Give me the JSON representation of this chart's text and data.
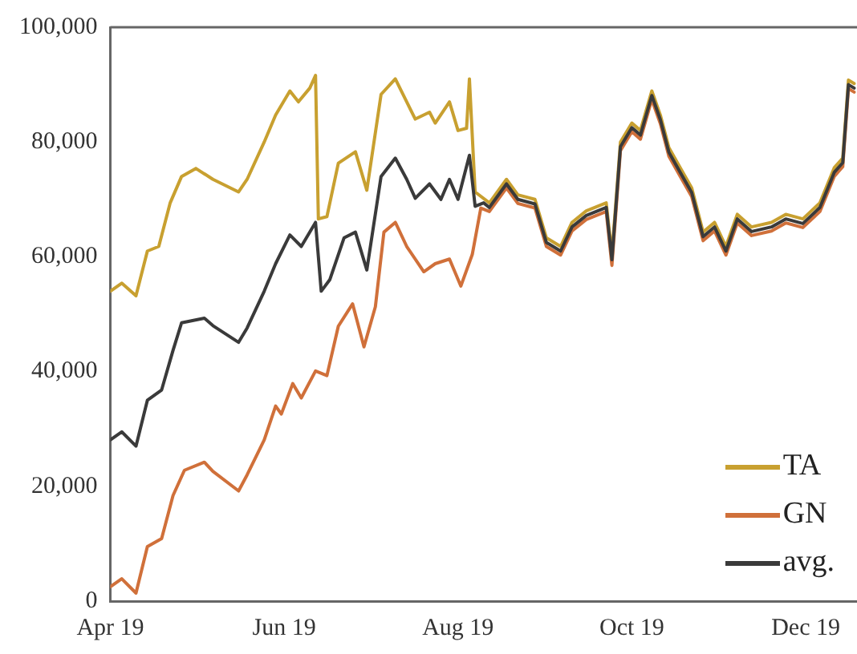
{
  "chart_data": {
    "type": "line",
    "xlim": [
      "2019-04-01",
      "2019-12-19"
    ],
    "xticks": [
      {
        "value": "2019-04-01",
        "label": "Apr 19"
      },
      {
        "value": "2019-06-01",
        "label": "Jun 19"
      },
      {
        "value": "2019-08-01",
        "label": "Aug 19"
      },
      {
        "value": "2019-10-01",
        "label": "Oct 19"
      },
      {
        "value": "2019-12-01",
        "label": "Dec 19"
      }
    ],
    "ylim": [
      0,
      100000
    ],
    "yticks": [
      0,
      {
        "value": 20000,
        "label": "20,000"
      },
      {
        "value": 40000,
        "label": "40,000"
      },
      {
        "value": 60000,
        "label": "60,000"
      },
      {
        "value": 80000,
        "label": "80,000"
      },
      {
        "value": 100000,
        "label": "100,000"
      }
    ],
    "grid": false,
    "legend": "bottom right",
    "marker": "none",
    "line_style": "solid",
    "series": [
      {
        "name": "TA",
        "color": "#c8a030",
        "x": [
          "2019-04-01",
          "2019-04-05",
          "2019-04-10",
          "2019-04-14",
          "2019-04-18",
          "2019-04-22",
          "2019-04-26",
          "2019-05-01",
          "2019-05-07",
          "2019-05-16",
          "2019-05-19",
          "2019-05-25",
          "2019-05-29",
          "2019-06-03",
          "2019-06-06",
          "2019-06-10",
          "2019-06-12",
          "2019-06-13",
          "2019-06-16",
          "2019-06-20",
          "2019-06-26",
          "2019-06-30",
          "2019-07-05",
          "2019-07-10",
          "2019-07-14",
          "2019-07-17",
          "2019-07-22",
          "2019-07-24",
          "2019-07-29",
          "2019-08-01",
          "2019-08-04",
          "2019-08-05",
          "2019-08-07",
          "2019-08-12",
          "2019-08-18",
          "2019-08-22",
          "2019-08-28",
          "2019-09-01",
          "2019-09-06",
          "2019-09-10",
          "2019-09-15",
          "2019-09-22",
          "2019-09-24",
          "2019-09-27",
          "2019-10-01",
          "2019-10-04",
          "2019-10-08",
          "2019-10-11",
          "2019-10-14",
          "2019-10-18",
          "2019-10-22",
          "2019-10-26",
          "2019-10-30",
          "2019-11-03",
          "2019-11-07",
          "2019-11-12",
          "2019-11-19",
          "2019-11-24",
          "2019-11-30",
          "2019-12-06",
          "2019-12-11",
          "2019-12-14",
          "2019-12-16",
          "2019-12-18"
        ],
        "values": [
          54000,
          55400,
          53200,
          61000,
          61800,
          69400,
          74000,
          75400,
          73500,
          71300,
          73500,
          80000,
          84700,
          88900,
          87000,
          89400,
          91600,
          66600,
          67000,
          76300,
          78300,
          71600,
          88300,
          91000,
          87000,
          84000,
          85200,
          83300,
          87000,
          82000,
          82400,
          91000,
          71300,
          69400,
          73500,
          70800,
          70000,
          63300,
          61800,
          66000,
          68000,
          69400,
          60400,
          80000,
          83300,
          82000,
          88900,
          84700,
          79000,
          75500,
          72000,
          64300,
          66000,
          61800,
          67400,
          65200,
          66000,
          67400,
          66600,
          69400,
          75500,
          77200,
          90800,
          90200
        ]
      },
      {
        "name": "GN",
        "color": "#d0703a",
        "x": [
          "2019-04-01",
          "2019-04-05",
          "2019-04-10",
          "2019-04-14",
          "2019-04-19",
          "2019-04-23",
          "2019-04-27",
          "2019-05-04",
          "2019-05-07",
          "2019-05-16",
          "2019-05-19",
          "2019-05-25",
          "2019-05-29",
          "2019-05-31",
          "2019-06-04",
          "2019-06-07",
          "2019-06-12",
          "2019-06-16",
          "2019-06-20",
          "2019-06-25",
          "2019-06-29",
          "2019-07-03",
          "2019-07-06",
          "2019-07-10",
          "2019-07-14",
          "2019-07-20",
          "2019-07-24",
          "2019-07-29",
          "2019-08-02",
          "2019-08-06",
          "2019-08-09",
          "2019-08-12",
          "2019-08-18",
          "2019-08-22",
          "2019-08-28",
          "2019-09-01",
          "2019-09-06",
          "2019-09-10",
          "2019-09-15",
          "2019-09-22",
          "2019-09-24",
          "2019-09-27",
          "2019-10-01",
          "2019-10-04",
          "2019-10-08",
          "2019-10-11",
          "2019-10-14",
          "2019-10-18",
          "2019-10-22",
          "2019-10-26",
          "2019-10-30",
          "2019-11-03",
          "2019-11-07",
          "2019-11-12",
          "2019-11-19",
          "2019-11-24",
          "2019-11-30",
          "2019-12-06",
          "2019-12-11",
          "2019-12-14",
          "2019-12-16",
          "2019-12-18"
        ],
        "values": [
          2500,
          3900,
          1400,
          9500,
          10900,
          18400,
          22800,
          24200,
          22600,
          19200,
          22000,
          28100,
          34000,
          32600,
          37900,
          35400,
          40100,
          39300,
          47900,
          51800,
          44300,
          51300,
          64300,
          66000,
          61800,
          57400,
          58800,
          59600,
          54900,
          60400,
          68500,
          67900,
          72000,
          69300,
          68500,
          61800,
          60300,
          64500,
          66500,
          67900,
          58500,
          78500,
          81800,
          80500,
          87400,
          83200,
          77500,
          74000,
          70500,
          62800,
          64500,
          60300,
          65900,
          63700,
          64500,
          65900,
          65100,
          67900,
          74000,
          75700,
          89300,
          88700
        ]
      },
      {
        "name": "avg.",
        "color": "#3a3a3a",
        "x": [
          "2019-04-01",
          "2019-04-05",
          "2019-04-10",
          "2019-04-14",
          "2019-04-19",
          "2019-04-23",
          "2019-04-26",
          "2019-05-04",
          "2019-05-07",
          "2019-05-16",
          "2019-05-19",
          "2019-05-25",
          "2019-05-29",
          "2019-06-03",
          "2019-06-07",
          "2019-06-12",
          "2019-06-14",
          "2019-06-17",
          "2019-06-22",
          "2019-06-26",
          "2019-06-30",
          "2019-07-05",
          "2019-07-10",
          "2019-07-14",
          "2019-07-17",
          "2019-07-22",
          "2019-07-26",
          "2019-07-29",
          "2019-08-01",
          "2019-08-05",
          "2019-08-07",
          "2019-08-10",
          "2019-08-12",
          "2019-08-18",
          "2019-08-22",
          "2019-08-28",
          "2019-09-01",
          "2019-09-06",
          "2019-09-10",
          "2019-09-15",
          "2019-09-22",
          "2019-09-24",
          "2019-09-27",
          "2019-10-01",
          "2019-10-04",
          "2019-10-08",
          "2019-10-11",
          "2019-10-14",
          "2019-10-18",
          "2019-10-22",
          "2019-10-26",
          "2019-10-30",
          "2019-11-03",
          "2019-11-07",
          "2019-11-12",
          "2019-11-19",
          "2019-11-24",
          "2019-11-30",
          "2019-12-06",
          "2019-12-11",
          "2019-12-14",
          "2019-12-16",
          "2019-12-18"
        ],
        "values": [
          28100,
          29500,
          27000,
          35000,
          36800,
          43700,
          48500,
          49300,
          48000,
          45100,
          47600,
          54000,
          58800,
          63800,
          61800,
          66000,
          54000,
          56000,
          63300,
          64300,
          57700,
          74000,
          77200,
          73500,
          70200,
          72700,
          70000,
          73500,
          70000,
          77700,
          68800,
          69400,
          68600,
          72700,
          70000,
          69200,
          62500,
          61000,
          65200,
          67200,
          68600,
          59500,
          79200,
          82500,
          81200,
          88100,
          83900,
          78200,
          74700,
          71200,
          63500,
          65200,
          61000,
          66600,
          64400,
          65200,
          66600,
          65800,
          68600,
          74700,
          76400,
          90000,
          89400
        ]
      }
    ]
  }
}
